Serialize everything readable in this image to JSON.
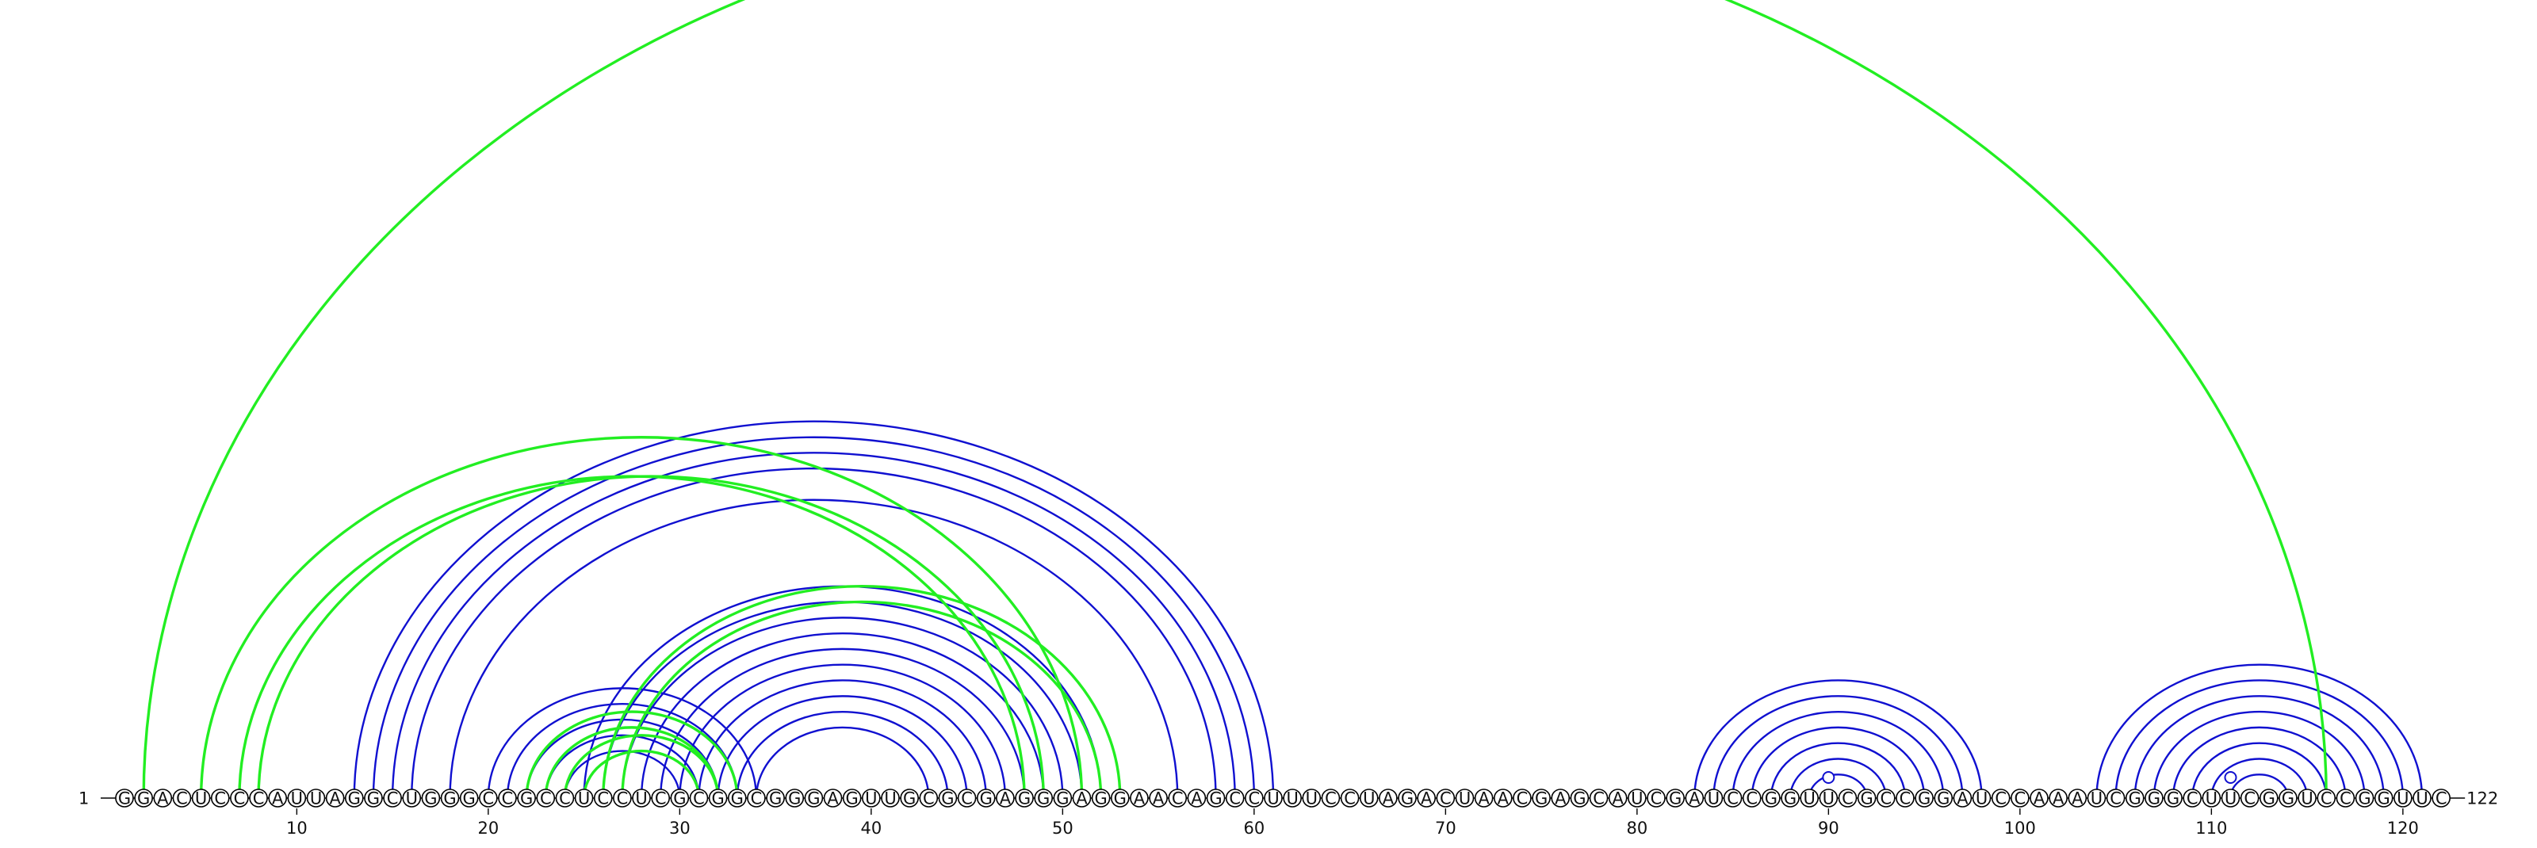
{
  "sequence": "GGACUCCCAUUAGGCUGGGCCGCCUCCUCGCGGCGGGAGUUGCGCGAGGGAGGAACAGCCUUUCCUAGACUAACGAGCAUCGAUCCGGUUCGCCGGAUCCAAAUCGGGCUUCGGUCCGGUUC",
  "start_label": "1",
  "end_label": "122",
  "position_ticks": [
    "10",
    "20",
    "30",
    "40",
    "50",
    "60",
    "70",
    "80",
    "90",
    "100",
    "110",
    "120"
  ],
  "colors": {
    "blue_arc": "#1010d0",
    "green_arc": "#22ee22",
    "unpaired_marker": "#1010d0"
  },
  "blue_pairs": [
    [
      13,
      61
    ],
    [
      14,
      60
    ],
    [
      15,
      59
    ],
    [
      16,
      58
    ],
    [
      18,
      56
    ],
    [
      20,
      34
    ],
    [
      21,
      33
    ],
    [
      22,
      32
    ],
    [
      23,
      31
    ],
    [
      24,
      30
    ],
    [
      25,
      52
    ],
    [
      26,
      51
    ],
    [
      27,
      50
    ],
    [
      28,
      49
    ],
    [
      29,
      48
    ],
    [
      30,
      47
    ],
    [
      31,
      46
    ],
    [
      32,
      45
    ],
    [
      33,
      44
    ],
    [
      34,
      43
    ],
    [
      83,
      98
    ],
    [
      84,
      97
    ],
    [
      85,
      96
    ],
    [
      86,
      95
    ],
    [
      87,
      94
    ],
    [
      88,
      93
    ],
    [
      89,
      92
    ],
    [
      104,
      121
    ],
    [
      105,
      120
    ],
    [
      106,
      119
    ],
    [
      107,
      118
    ],
    [
      108,
      117
    ],
    [
      109,
      116
    ],
    [
      110,
      115
    ],
    [
      111,
      114
    ]
  ],
  "green_pairs": [
    [
      2,
      116
    ],
    [
      5,
      51
    ],
    [
      7,
      48
    ],
    [
      8,
      49
    ],
    [
      22,
      33
    ],
    [
      23,
      32
    ],
    [
      24,
      32
    ],
    [
      25,
      31
    ],
    [
      26,
      53
    ],
    [
      27,
      52
    ]
  ],
  "unpaired_markers": [
    90,
    111
  ]
}
